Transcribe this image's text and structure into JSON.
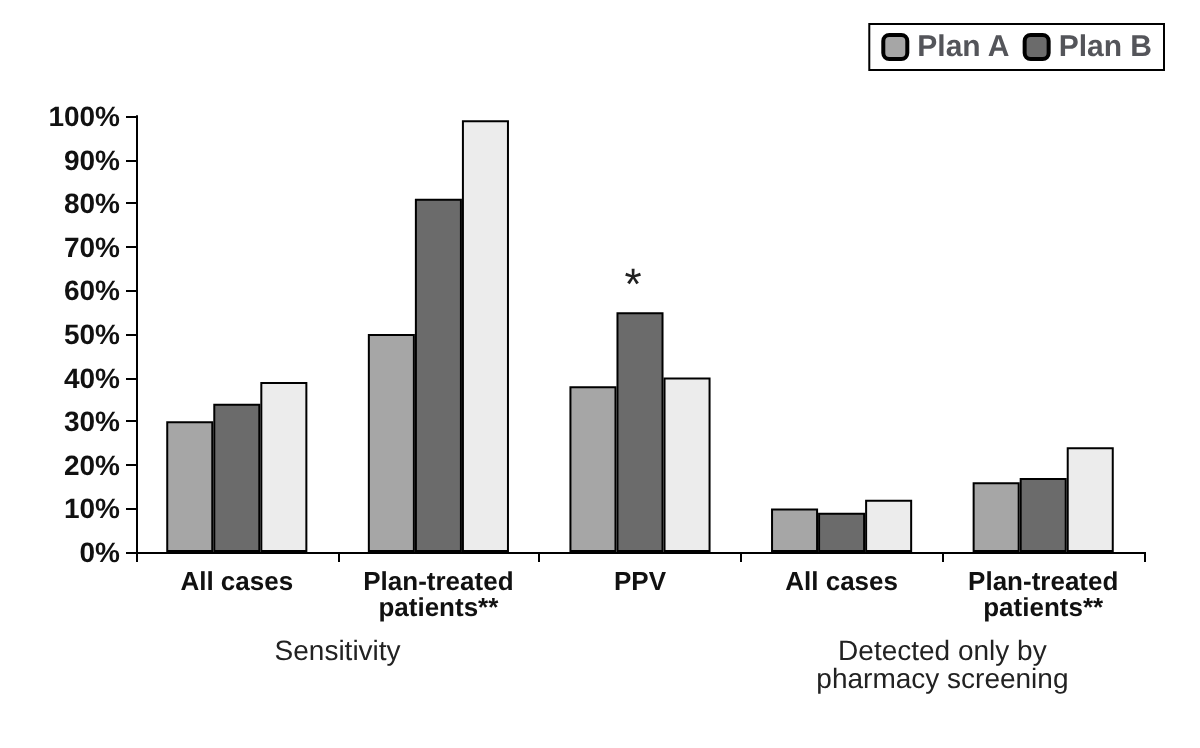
{
  "chart_data": {
    "type": "bar",
    "categories": [
      "All cases",
      "Plan-treated\npatients**",
      "PPV",
      "All cases",
      "Plan-treated\npatients**"
    ],
    "series": [
      {
        "name": "Plan A",
        "color": "#a6a6a6",
        "values": [
          30,
          50,
          38,
          10,
          16
        ]
      },
      {
        "name": "Plan B",
        "color": "#6b6b6b",
        "values": [
          34,
          81,
          55,
          9,
          17
        ]
      },
      {
        "color": "#ececec",
        "values": [
          39,
          99,
          40,
          12,
          24
        ]
      }
    ],
    "ylim": [
      0,
      100
    ],
    "yticks": [
      {
        "value": 0,
        "label": "0%"
      },
      {
        "value": 10,
        "label": "10%"
      },
      {
        "value": 20,
        "label": "20%"
      },
      {
        "value": 30,
        "label": "30%"
      },
      {
        "value": 40,
        "label": "40%"
      },
      {
        "value": 50,
        "label": "50%"
      },
      {
        "value": 60,
        "label": "60%"
      },
      {
        "value": 70,
        "label": "70%"
      },
      {
        "value": 80,
        "label": "80%"
      },
      {
        "value": 90,
        "label": "90%"
      },
      {
        "value": 100,
        "label": "100%"
      }
    ],
    "grid": false,
    "legend": "top right",
    "annotations": [
      {
        "text": "*",
        "x": "PPV",
        "y": 55
      },
      "Sensitivity",
      "Detected only by\npharmacy screening"
    ]
  }
}
